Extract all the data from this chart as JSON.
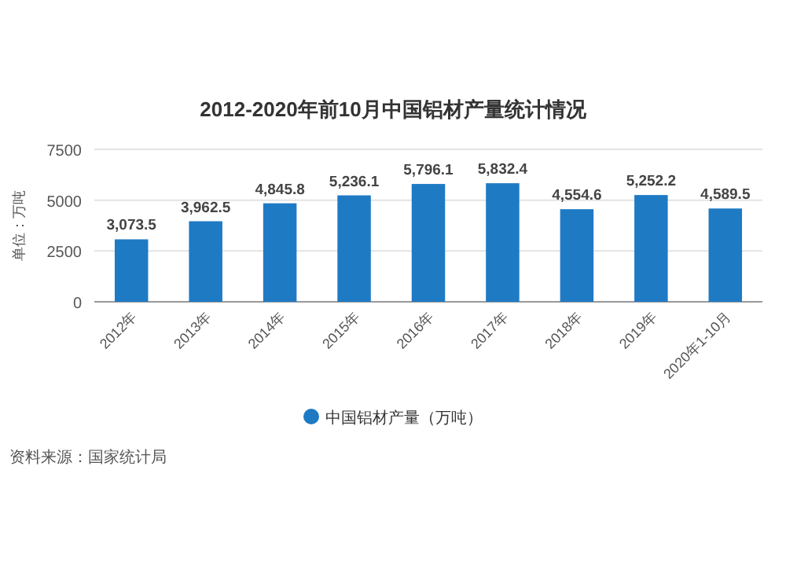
{
  "chart_data": {
    "type": "bar",
    "title": "2012-2020年前10月中国铝材产量统计情况",
    "ylabel": "单位：万吨",
    "categories": [
      "2012年",
      "2013年",
      "2014年",
      "2015年",
      "2016年",
      "2017年",
      "2018年",
      "2019年",
      "2020年1-10月"
    ],
    "series": [
      {
        "name": "中国铝材产量（万吨）",
        "color": "#1f7ac4",
        "values": [
          3073.5,
          3962.5,
          4845.8,
          5236.1,
          5796.1,
          5832.4,
          4554.6,
          5252.2,
          4589.5
        ]
      }
    ],
    "value_labels": [
      "3,073.5",
      "3,962.5",
      "4,845.8",
      "5,236.1",
      "5,796.1",
      "5,832.4",
      "4,554.6",
      "5,252.2",
      "4,589.5"
    ],
    "ylim": [
      0,
      7500
    ],
    "yticks": [
      0,
      2500,
      5000,
      7500
    ],
    "grid": "y",
    "legend": "bottom",
    "annotations": [
      "资料来源：国家统计局"
    ]
  }
}
